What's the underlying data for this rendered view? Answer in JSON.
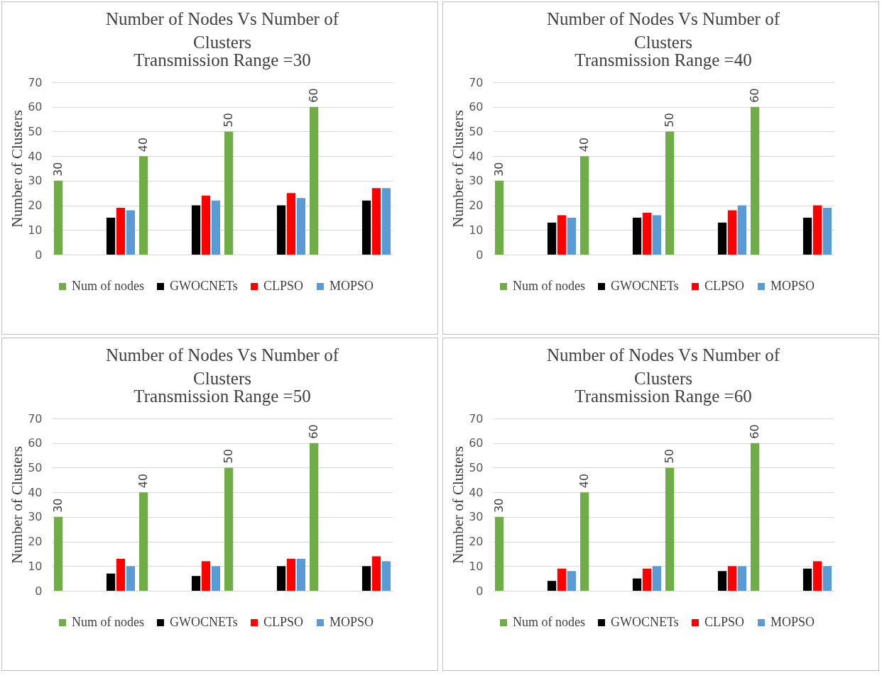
{
  "chart_data": [
    {
      "type": "bar",
      "title": "Number of Nodes Vs Number of Clusters",
      "subtitle": "Transmission Range =30",
      "ylabel": "Number of Clusters",
      "categories": [
        null,
        null,
        null,
        null,
        null,
        null,
        null,
        null
      ],
      "ylim": [
        0,
        70
      ],
      "yticks": [
        0,
        10,
        20,
        30,
        40,
        50,
        60,
        70
      ],
      "grid": "y",
      "legend": "bottom",
      "series": [
        {
          "name": "Num of nodes",
          "color": "#70ad47",
          "values": [
            30,
            null,
            40,
            null,
            50,
            null,
            60,
            null
          ],
          "value_labels": [
            "30",
            null,
            "40",
            null,
            "50",
            null,
            "60",
            null
          ]
        },
        {
          "name": "GWOCNETs",
          "color": "#000000",
          "values": [
            null,
            15,
            null,
            20,
            null,
            20,
            null,
            22
          ]
        },
        {
          "name": "CLPSO",
          "color": "#ff0000",
          "values": [
            null,
            19,
            null,
            24,
            null,
            25,
            null,
            27
          ]
        },
        {
          "name": "MOPSO",
          "color": "#5b9bd5",
          "values": [
            null,
            18,
            null,
            22,
            null,
            23,
            null,
            27
          ]
        }
      ]
    },
    {
      "type": "bar",
      "title": "Number of Nodes Vs Number of Clusters",
      "subtitle": "Transmission Range =40",
      "ylabel": "Number of Clusters",
      "categories": [
        null,
        null,
        null,
        null,
        null,
        null,
        null,
        null
      ],
      "ylim": [
        0,
        70
      ],
      "yticks": [
        0,
        10,
        20,
        30,
        40,
        50,
        60,
        70
      ],
      "grid": "y",
      "legend": "bottom",
      "series": [
        {
          "name": "Num of nodes",
          "color": "#70ad47",
          "values": [
            30,
            null,
            40,
            null,
            50,
            null,
            60,
            null
          ],
          "value_labels": [
            "30",
            null,
            "40",
            null,
            "50",
            null,
            "60",
            null
          ]
        },
        {
          "name": "GWOCNETs",
          "color": "#000000",
          "values": [
            null,
            13,
            null,
            15,
            null,
            13,
            null,
            15
          ]
        },
        {
          "name": "CLPSO",
          "color": "#ff0000",
          "values": [
            null,
            16,
            null,
            17,
            null,
            18,
            null,
            20
          ]
        },
        {
          "name": "MOPSO",
          "color": "#5b9bd5",
          "values": [
            null,
            15,
            null,
            16,
            null,
            20,
            null,
            19
          ]
        }
      ]
    },
    {
      "type": "bar",
      "title": "Number of Nodes Vs Number of Clusters",
      "subtitle": "Transmission Range =50",
      "ylabel": "Number of Clusters",
      "categories": [
        null,
        null,
        null,
        null,
        null,
        null,
        null,
        null
      ],
      "ylim": [
        0,
        70
      ],
      "yticks": [
        0,
        10,
        20,
        30,
        40,
        50,
        60,
        70
      ],
      "grid": "y",
      "legend": "bottom",
      "series": [
        {
          "name": "Num of nodes",
          "color": "#70ad47",
          "values": [
            30,
            null,
            40,
            null,
            50,
            null,
            60,
            null
          ],
          "value_labels": [
            "30",
            null,
            "40",
            null,
            "50",
            null,
            "60",
            null
          ]
        },
        {
          "name": "GWOCNETs",
          "color": "#000000",
          "values": [
            null,
            7,
            null,
            6,
            null,
            10,
            null,
            10
          ]
        },
        {
          "name": "CLPSO",
          "color": "#ff0000",
          "values": [
            null,
            13,
            null,
            12,
            null,
            13,
            null,
            14
          ]
        },
        {
          "name": "MOPSO",
          "color": "#5b9bd5",
          "values": [
            null,
            10,
            null,
            10,
            null,
            13,
            null,
            12
          ]
        }
      ]
    },
    {
      "type": "bar",
      "title": "Number of Nodes Vs Number of Clusters",
      "subtitle": "Transmission Range =60",
      "ylabel": "Number of Clusters",
      "categories": [
        null,
        null,
        null,
        null,
        null,
        null,
        null,
        null
      ],
      "ylim": [
        0,
        70
      ],
      "yticks": [
        0,
        10,
        20,
        30,
        40,
        50,
        60,
        70
      ],
      "grid": "y",
      "legend": "bottom",
      "series": [
        {
          "name": "Num of nodes",
          "color": "#70ad47",
          "values": [
            30,
            null,
            40,
            null,
            50,
            null,
            60,
            null
          ],
          "value_labels": [
            "30",
            null,
            "40",
            null,
            "50",
            null,
            "60",
            null
          ]
        },
        {
          "name": "GWOCNETs",
          "color": "#000000",
          "values": [
            null,
            4,
            null,
            5,
            null,
            8,
            null,
            9
          ]
        },
        {
          "name": "CLPSO",
          "color": "#ff0000",
          "values": [
            null,
            9,
            null,
            9,
            null,
            10,
            null,
            12
          ]
        },
        {
          "name": "MOPSO",
          "color": "#5b9bd5",
          "values": [
            null,
            8,
            null,
            10,
            null,
            10,
            null,
            10
          ]
        }
      ]
    }
  ]
}
